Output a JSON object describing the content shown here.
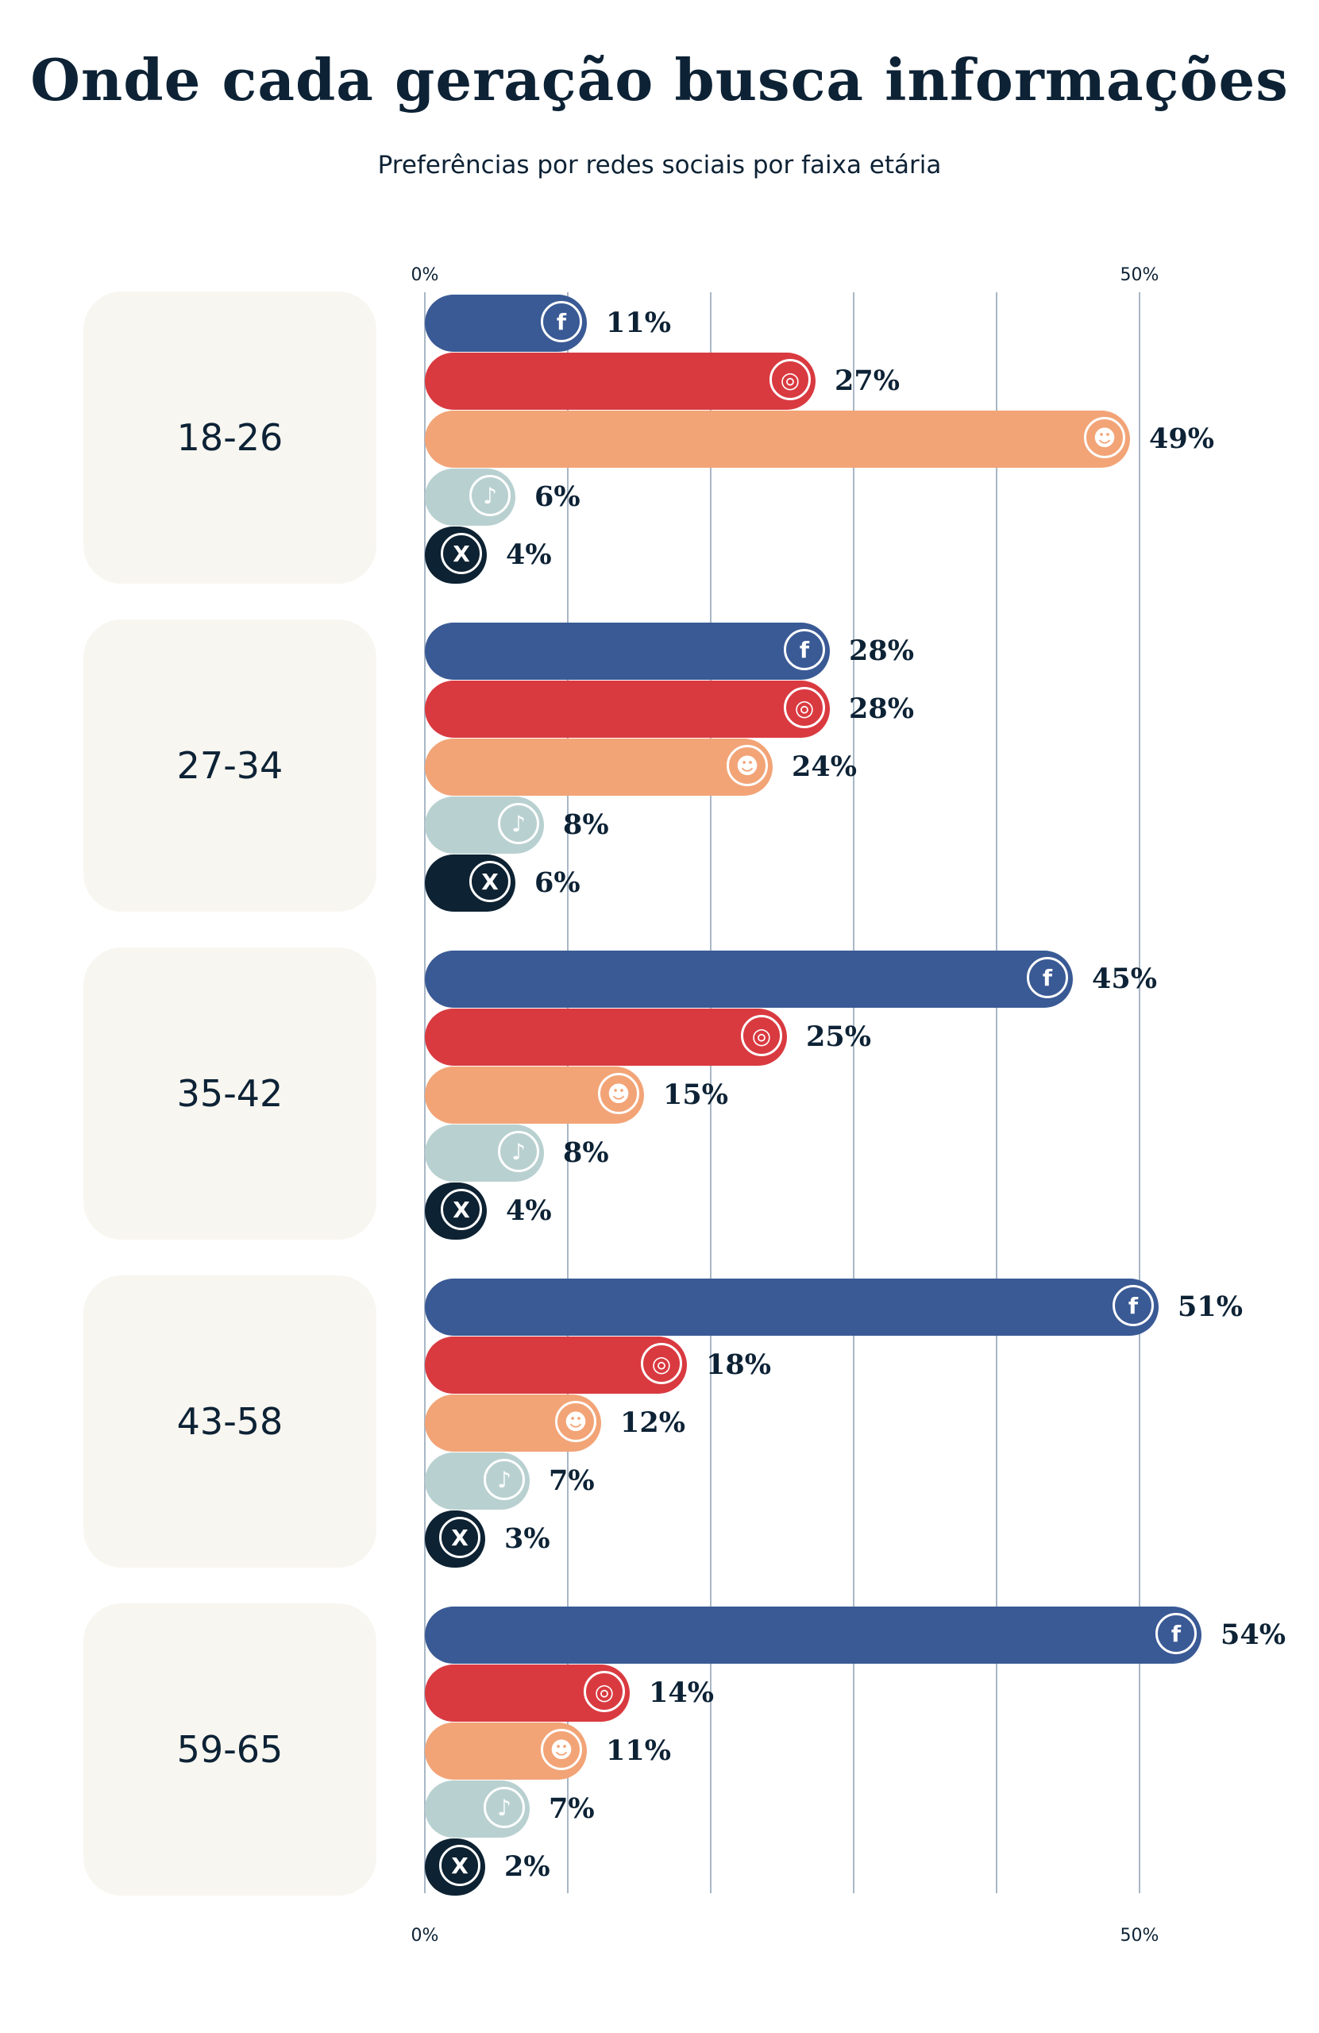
{
  "chart_data": {
    "type": "bar",
    "orientation": "horizontal",
    "title": "Onde cada geração busca informações",
    "subtitle": "Preferências por redes sociais por faixa etária",
    "categories": [
      "18-26",
      "27-34",
      "35-42",
      "43-58",
      "59-65"
    ],
    "series": [
      {
        "icon": "facebook-icon",
        "color": "#3a5a95",
        "values": [
          11,
          28,
          45,
          51,
          54
        ]
      },
      {
        "icon": "instagram-icon",
        "color": "#d93a40",
        "values": [
          27,
          28,
          25,
          18,
          14
        ]
      },
      {
        "icon": "reddit-icon",
        "color": "#f2a477",
        "values": [
          49,
          24,
          15,
          12,
          11
        ]
      },
      {
        "icon": "tiktok-icon",
        "color": "#b8d0d0",
        "values": [
          6,
          8,
          8,
          7,
          7
        ]
      },
      {
        "icon": "x-icon",
        "color": "#0d2232",
        "values": [
          4,
          6,
          4,
          3,
          2
        ]
      }
    ],
    "value_format": "%",
    "xlim": [
      0,
      60
    ],
    "x_ticks_labeled": [
      "0%",
      "50%"
    ],
    "grid": true
  }
}
